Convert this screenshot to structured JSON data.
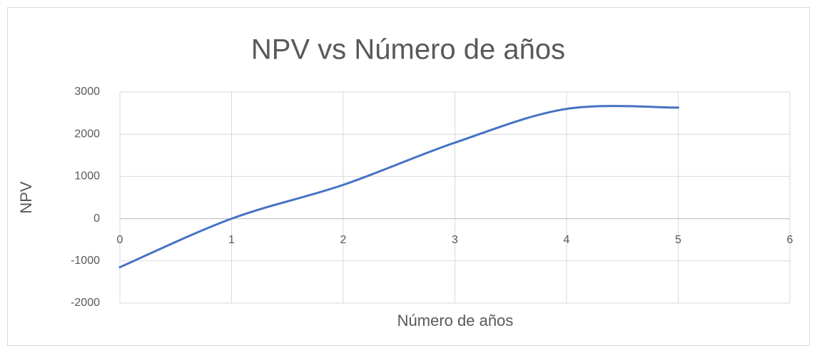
{
  "chart_data": {
    "type": "line",
    "smooth": true,
    "title": "NPV vs Número de años",
    "x_label": "Número de años",
    "y_label": "NPV",
    "x": [
      0,
      1,
      2,
      3,
      4,
      5
    ],
    "series": [
      {
        "name": "NPV",
        "color": "#4472c4",
        "values": [
          -1150,
          0,
          800,
          1800,
          2600,
          2630
        ]
      }
    ],
    "xlim": [
      0,
      6
    ],
    "xticks": [
      0,
      1,
      2,
      3,
      4,
      5,
      6
    ],
    "ylim": [
      -2000,
      3000
    ],
    "yticks": [
      -2000,
      -1000,
      0,
      1000,
      2000,
      3000
    ],
    "grid": true
  }
}
